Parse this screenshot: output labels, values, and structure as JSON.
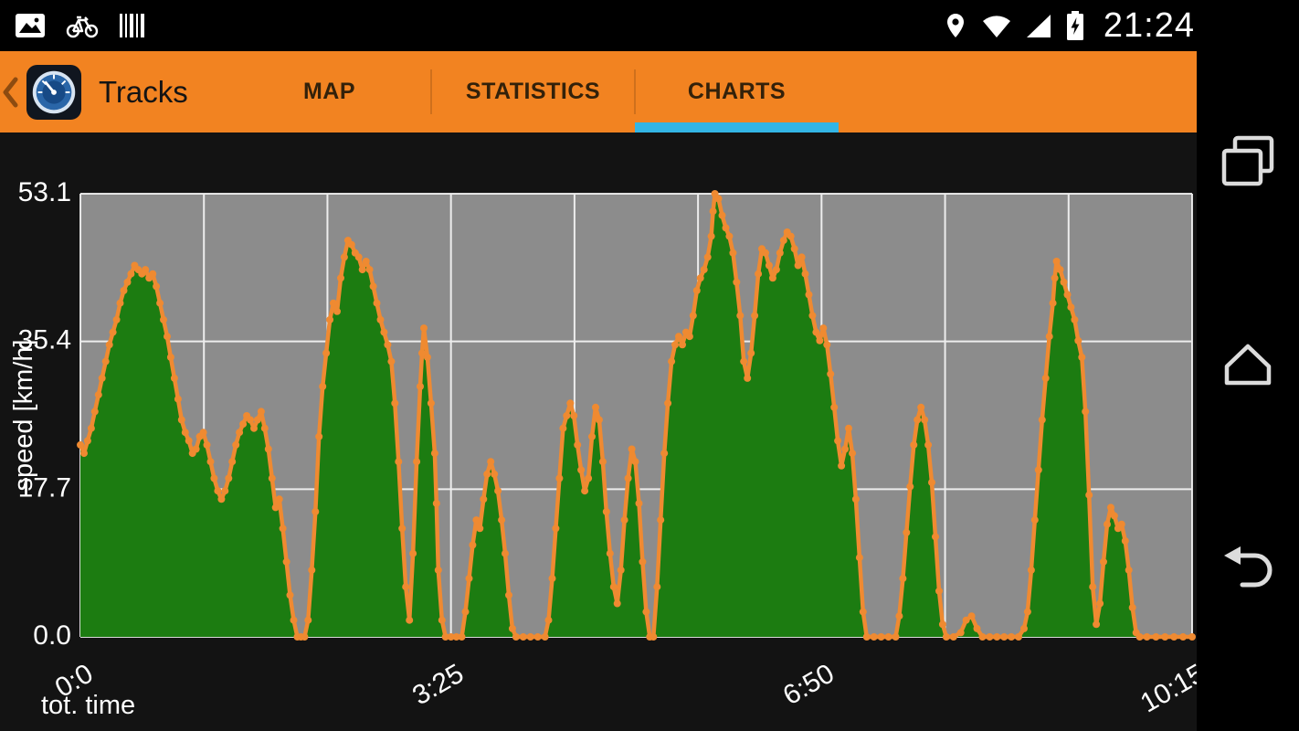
{
  "status_bar": {
    "time": "21:24",
    "icons_left": [
      "gallery-icon",
      "bike-icon",
      "barcode-icon"
    ],
    "icons_right": [
      "location-icon",
      "wifi-icon",
      "signal-icon",
      "battery-charging-icon"
    ]
  },
  "action_bar": {
    "title": "Tracks",
    "accent_color": "#F28321",
    "active_tab_underline_color": "#33B5E5",
    "tabs": [
      {
        "label": "MAP",
        "active": false
      },
      {
        "label": "STATISTICS",
        "active": false
      },
      {
        "label": "CHARTS",
        "active": true
      }
    ]
  },
  "nav_bar": {
    "buttons": [
      "recents",
      "home",
      "back"
    ]
  },
  "chart_data": {
    "type": "area",
    "title": "",
    "xlabel": "tot. time",
    "ylabel": "speed [km/h]",
    "xlim": [
      0,
      615
    ],
    "ylim": [
      0,
      53.1
    ],
    "x_divisions": 9,
    "grid": true,
    "legend": false,
    "x_ticks": [
      {
        "t": 0,
        "label": "0:0"
      },
      {
        "t": 205,
        "label": "3:25"
      },
      {
        "t": 410,
        "label": "6:50"
      },
      {
        "t": 615,
        "label": "10:15"
      }
    ],
    "y_ticks": [
      {
        "value": 0,
        "label": "0.0"
      },
      {
        "value": 17.7,
        "label": "17.7"
      },
      {
        "value": 35.4,
        "label": "35.4"
      },
      {
        "value": 53.1,
        "label": "53.1"
      }
    ],
    "colors": {
      "area": "#1C7C11",
      "line": "#EF8A31",
      "plot_bg": "#8C8C8C",
      "grid": "#FFFFFF",
      "text": "#FFFFFF"
    },
    "series": [
      {
        "name": "speed",
        "points": [
          [
            0,
            23
          ],
          [
            2,
            22
          ],
          [
            4,
            23.5
          ],
          [
            6,
            25
          ],
          [
            8,
            27
          ],
          [
            10,
            29
          ],
          [
            12,
            31
          ],
          [
            14,
            33
          ],
          [
            16,
            35
          ],
          [
            18,
            36.5
          ],
          [
            20,
            38
          ],
          [
            22,
            40
          ],
          [
            24,
            41.5
          ],
          [
            26,
            42.5
          ],
          [
            28,
            43.5
          ],
          [
            30,
            44.5
          ],
          [
            32,
            44
          ],
          [
            34,
            43.5
          ],
          [
            36,
            44
          ],
          [
            38,
            43
          ],
          [
            40,
            43.5
          ],
          [
            42,
            42
          ],
          [
            44,
            40
          ],
          [
            46,
            38
          ],
          [
            48,
            36
          ],
          [
            50,
            33.5
          ],
          [
            52,
            31
          ],
          [
            54,
            28.5
          ],
          [
            56,
            26
          ],
          [
            58,
            24.5
          ],
          [
            60,
            23.5
          ],
          [
            62,
            22
          ],
          [
            64,
            22.5
          ],
          [
            66,
            24
          ],
          [
            68,
            24.5
          ],
          [
            70,
            23
          ],
          [
            72,
            21
          ],
          [
            74,
            19
          ],
          [
            76,
            17.5
          ],
          [
            78,
            16.5
          ],
          [
            80,
            17.5
          ],
          [
            82,
            19
          ],
          [
            84,
            21
          ],
          [
            86,
            23
          ],
          [
            88,
            24.5
          ],
          [
            90,
            25.5
          ],
          [
            92,
            26.5
          ],
          [
            94,
            26
          ],
          [
            96,
            25
          ],
          [
            98,
            26
          ],
          [
            100,
            27
          ],
          [
            102,
            25
          ],
          [
            104,
            22.5
          ],
          [
            106,
            19
          ],
          [
            108,
            15.5
          ],
          [
            110,
            16.5
          ],
          [
            112,
            13
          ],
          [
            114,
            9
          ],
          [
            116,
            5
          ],
          [
            118,
            2
          ],
          [
            120,
            0
          ],
          [
            122,
            0
          ],
          [
            124,
            0
          ],
          [
            126,
            2
          ],
          [
            128,
            8
          ],
          [
            130,
            15
          ],
          [
            132,
            24
          ],
          [
            134,
            30
          ],
          [
            136,
            34
          ],
          [
            138,
            38
          ],
          [
            140,
            40
          ],
          [
            142,
            39
          ],
          [
            144,
            43
          ],
          [
            146,
            45.5
          ],
          [
            148,
            47.5
          ],
          [
            150,
            47
          ],
          [
            152,
            46
          ],
          [
            154,
            45.5
          ],
          [
            156,
            44
          ],
          [
            158,
            45
          ],
          [
            160,
            44
          ],
          [
            162,
            42
          ],
          [
            164,
            40
          ],
          [
            166,
            38
          ],
          [
            168,
            36.5
          ],
          [
            170,
            35
          ],
          [
            172,
            33
          ],
          [
            174,
            28
          ],
          [
            176,
            21
          ],
          [
            178,
            13
          ],
          [
            180,
            6
          ],
          [
            182,
            2
          ],
          [
            184,
            10
          ],
          [
            186,
            21
          ],
          [
            188,
            30
          ],
          [
            189,
            34
          ],
          [
            190,
            37
          ],
          [
            192,
            33.5
          ],
          [
            194,
            28
          ],
          [
            196,
            22
          ],
          [
            197,
            16
          ],
          [
            198,
            8
          ],
          [
            200,
            2
          ],
          [
            202,
            0
          ],
          [
            205,
            0
          ],
          [
            208,
            0
          ],
          [
            211,
            0
          ],
          [
            213,
            3
          ],
          [
            215,
            7
          ],
          [
            217,
            11
          ],
          [
            219,
            14
          ],
          [
            221,
            13
          ],
          [
            223,
            16.5
          ],
          [
            225,
            19.5
          ],
          [
            227,
            21
          ],
          [
            229,
            19.5
          ],
          [
            231,
            17.5
          ],
          [
            233,
            14
          ],
          [
            235,
            10
          ],
          [
            237,
            5
          ],
          [
            239,
            1
          ],
          [
            241,
            0
          ],
          [
            245,
            0
          ],
          [
            249,
            0
          ],
          [
            253,
            0
          ],
          [
            257,
            0
          ],
          [
            259,
            2
          ],
          [
            261,
            7
          ],
          [
            263,
            13
          ],
          [
            265,
            19
          ],
          [
            267,
            25
          ],
          [
            269,
            26.5
          ],
          [
            271,
            28
          ],
          [
            273,
            26.5
          ],
          [
            275,
            23
          ],
          [
            277,
            20
          ],
          [
            279,
            17.5
          ],
          [
            281,
            19
          ],
          [
            283,
            24
          ],
          [
            285,
            27.5
          ],
          [
            287,
            26
          ],
          [
            289,
            21
          ],
          [
            291,
            15
          ],
          [
            293,
            10
          ],
          [
            295,
            6
          ],
          [
            297,
            4
          ],
          [
            299,
            8
          ],
          [
            301,
            14
          ],
          [
            303,
            19
          ],
          [
            305,
            22.5
          ],
          [
            307,
            21
          ],
          [
            309,
            16
          ],
          [
            311,
            9
          ],
          [
            313,
            3
          ],
          [
            315,
            0
          ],
          [
            317,
            0
          ],
          [
            319,
            6
          ],
          [
            321,
            14
          ],
          [
            323,
            22
          ],
          [
            325,
            28
          ],
          [
            327,
            33
          ],
          [
            329,
            35
          ],
          [
            331,
            36
          ],
          [
            333,
            35
          ],
          [
            335,
            36.5
          ],
          [
            337,
            36
          ],
          [
            339,
            38.5
          ],
          [
            341,
            41.5
          ],
          [
            343,
            43
          ],
          [
            345,
            44
          ],
          [
            347,
            45.5
          ],
          [
            349,
            48
          ],
          [
            350,
            51
          ],
          [
            351,
            53.1
          ],
          [
            353,
            52.5
          ],
          [
            355,
            50.5
          ],
          [
            357,
            49
          ],
          [
            359,
            48
          ],
          [
            361,
            46
          ],
          [
            363,
            42.5
          ],
          [
            365,
            38.5
          ],
          [
            367,
            33
          ],
          [
            369,
            31
          ],
          [
            371,
            34
          ],
          [
            373,
            38.5
          ],
          [
            375,
            43.5
          ],
          [
            377,
            46.5
          ],
          [
            379,
            46
          ],
          [
            381,
            44.5
          ],
          [
            383,
            43
          ],
          [
            385,
            44
          ],
          [
            387,
            46
          ],
          [
            389,
            47.5
          ],
          [
            391,
            48.5
          ],
          [
            393,
            48
          ],
          [
            395,
            46.5
          ],
          [
            397,
            44.5
          ],
          [
            399,
            45.5
          ],
          [
            401,
            43.5
          ],
          [
            403,
            41
          ],
          [
            405,
            38.5
          ],
          [
            407,
            36.5
          ],
          [
            409,
            35.5
          ],
          [
            411,
            37
          ],
          [
            413,
            35
          ],
          [
            415,
            31.5
          ],
          [
            417,
            27.5
          ],
          [
            419,
            23.5
          ],
          [
            421,
            20.5
          ],
          [
            423,
            22.5
          ],
          [
            425,
            25
          ],
          [
            427,
            22
          ],
          [
            429,
            16.5
          ],
          [
            431,
            9.5
          ],
          [
            433,
            3
          ],
          [
            435,
            0
          ],
          [
            439,
            0
          ],
          [
            443,
            0
          ],
          [
            447,
            0
          ],
          [
            451,
            0
          ],
          [
            453,
            2.5
          ],
          [
            455,
            7
          ],
          [
            457,
            12.5
          ],
          [
            459,
            18
          ],
          [
            461,
            23
          ],
          [
            463,
            26
          ],
          [
            465,
            27.5
          ],
          [
            467,
            26
          ],
          [
            469,
            23
          ],
          [
            471,
            18.5
          ],
          [
            473,
            12
          ],
          [
            475,
            5.5
          ],
          [
            477,
            1.5
          ],
          [
            479,
            0
          ],
          [
            483,
            0
          ],
          [
            487,
            0.5
          ],
          [
            490,
            2
          ],
          [
            493,
            2.5
          ],
          [
            496,
            1
          ],
          [
            499,
            0
          ],
          [
            503,
            0
          ],
          [
            507,
            0
          ],
          [
            511,
            0
          ],
          [
            515,
            0
          ],
          [
            519,
            0
          ],
          [
            522,
            1
          ],
          [
            524,
            3
          ],
          [
            526,
            8
          ],
          [
            528,
            14
          ],
          [
            530,
            20
          ],
          [
            532,
            26
          ],
          [
            534,
            31
          ],
          [
            536,
            36
          ],
          [
            538,
            40
          ],
          [
            539,
            43
          ],
          [
            540,
            45
          ],
          [
            542,
            44
          ],
          [
            544,
            42.5
          ],
          [
            546,
            41
          ],
          [
            548,
            39.5
          ],
          [
            550,
            38
          ],
          [
            552,
            35.5
          ],
          [
            554,
            33.5
          ],
          [
            556,
            27
          ],
          [
            558,
            17
          ],
          [
            560,
            6
          ],
          [
            562,
            1.5
          ],
          [
            564,
            4
          ],
          [
            566,
            9
          ],
          [
            568,
            13.5
          ],
          [
            570,
            15.5
          ],
          [
            572,
            14.5
          ],
          [
            574,
            13
          ],
          [
            576,
            13.5
          ],
          [
            578,
            11.5
          ],
          [
            580,
            8
          ],
          [
            582,
            3.5
          ],
          [
            584,
            0.5
          ],
          [
            586,
            0
          ],
          [
            590,
            0
          ],
          [
            595,
            0
          ],
          [
            600,
            0
          ],
          [
            605,
            0
          ],
          [
            610,
            0
          ],
          [
            615,
            0
          ]
        ]
      }
    ]
  }
}
